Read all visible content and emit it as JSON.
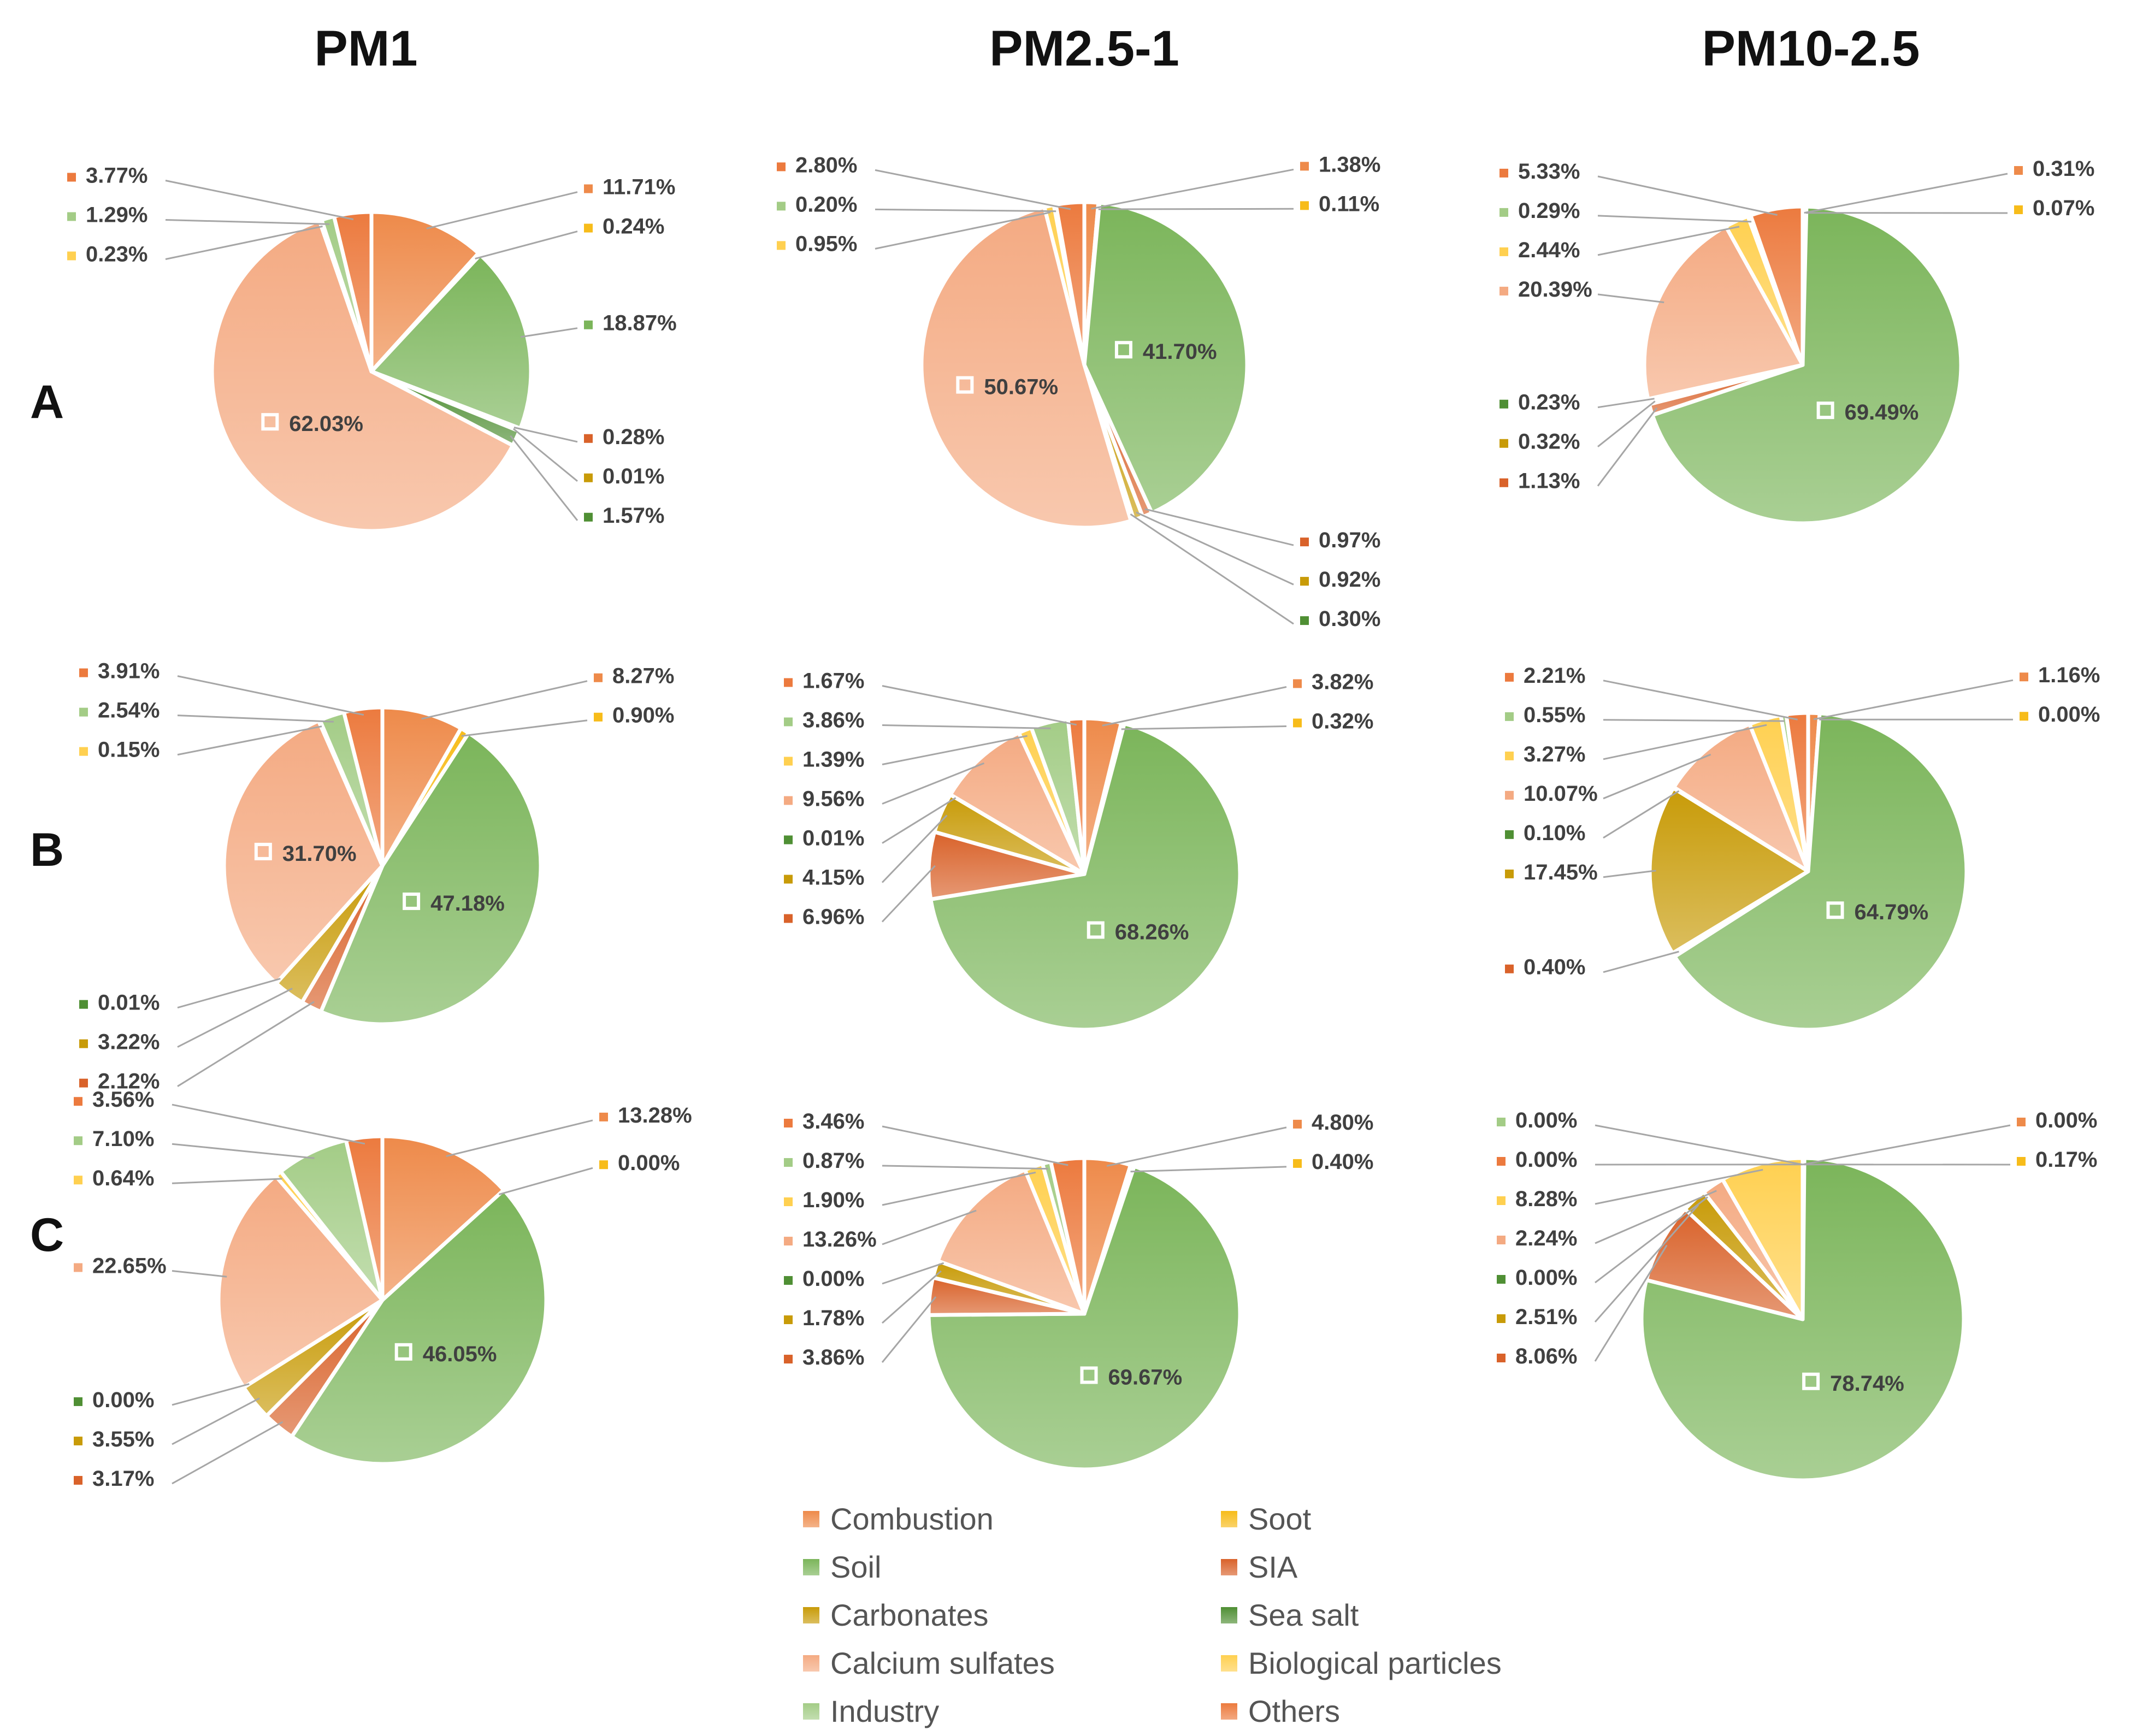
{
  "colors": {
    "Combustion": "#EE8A4A",
    "Soot": "#F7BC1A",
    "Soil": "#7BB55A",
    "SIA": "#D9622A",
    "Carbonates": "#C89B08",
    "Sea salt": "#4F8F34",
    "Calcium sulfates": "#F4AA82",
    "Biological particles": "#FFD050",
    "Industry": "#A3CC86",
    "Others": "#EC7A3E"
  },
  "chart_data": {
    "type": "pie",
    "title": "",
    "columns": [
      "PM1",
      "PM2.5-1",
      "PM10-2.5"
    ],
    "rows": [
      "A",
      "B",
      "C"
    ],
    "legend": {
      "placement": "bottom-center",
      "entries": [
        "Combustion",
        "Soot",
        "Soil",
        "SIA",
        "Carbonates",
        "Sea salt",
        "Calcium sulfates",
        "Biological particles",
        "Industry",
        "Others"
      ]
    },
    "charts": [
      {
        "row": "A",
        "column": "PM1",
        "slices": [
          {
            "category": "Combustion",
            "value": 11.71,
            "label": "11.71%"
          },
          {
            "category": "Soot",
            "value": 0.24,
            "label": "0.24%"
          },
          {
            "category": "Soil",
            "value": 18.87,
            "label": "18.87%"
          },
          {
            "category": "SIA",
            "value": 0.28,
            "label": "0.28%"
          },
          {
            "category": "Carbonates",
            "value": 0.01,
            "label": "0.01%"
          },
          {
            "category": "Sea salt",
            "value": 1.57,
            "label": "1.57%"
          },
          {
            "category": "Calcium sulfates",
            "value": 62.03,
            "label": "62.03%"
          },
          {
            "category": "Biological particles",
            "value": 0.23,
            "label": "0.23%"
          },
          {
            "category": "Industry",
            "value": 1.29,
            "label": "1.29%"
          },
          {
            "category": "Others",
            "value": 3.77,
            "label": "3.77%"
          }
        ]
      },
      {
        "row": "A",
        "column": "PM2.5-1",
        "slices": [
          {
            "category": "Combustion",
            "value": 1.38,
            "label": "1.38%"
          },
          {
            "category": "Soot",
            "value": 0.11,
            "label": "0.11%"
          },
          {
            "category": "Soil",
            "value": 41.7,
            "label": "41.70%"
          },
          {
            "category": "SIA",
            "value": 0.97,
            "label": "0.97%"
          },
          {
            "category": "Carbonates",
            "value": 0.92,
            "label": "0.92%"
          },
          {
            "category": "Sea salt",
            "value": 0.3,
            "label": "0.30%"
          },
          {
            "category": "Calcium sulfates",
            "value": 50.67,
            "label": "50.67%"
          },
          {
            "category": "Biological particles",
            "value": 0.95,
            "label": "0.95%"
          },
          {
            "category": "Industry",
            "value": 0.2,
            "label": "0.20%"
          },
          {
            "category": "Others",
            "value": 2.8,
            "label": "2.80%"
          }
        ]
      },
      {
        "row": "A",
        "column": "PM10-2.5",
        "slices": [
          {
            "category": "Combustion",
            "value": 0.31,
            "label": "0.31%"
          },
          {
            "category": "Soot",
            "value": 0.07,
            "label": "0.07%"
          },
          {
            "category": "Soil",
            "value": 69.49,
            "label": "69.49%"
          },
          {
            "category": "SIA",
            "value": 1.13,
            "label": "1.13%"
          },
          {
            "category": "Carbonates",
            "value": 0.32,
            "label": "0.32%"
          },
          {
            "category": "Sea salt",
            "value": 0.23,
            "label": "0.23%"
          },
          {
            "category": "Calcium sulfates",
            "value": 20.39,
            "label": "20.39%"
          },
          {
            "category": "Biological particles",
            "value": 2.44,
            "label": "2.44%"
          },
          {
            "category": "Industry",
            "value": 0.29,
            "label": "0.29%"
          },
          {
            "category": "Others",
            "value": 5.33,
            "label": "5.33%"
          }
        ]
      },
      {
        "row": "B",
        "column": "PM1",
        "slices": [
          {
            "category": "Combustion",
            "value": 8.27,
            "label": "8.27%"
          },
          {
            "category": "Soot",
            "value": 0.9,
            "label": "0.90%"
          },
          {
            "category": "Soil",
            "value": 47.18,
            "label": "47.18%"
          },
          {
            "category": "SIA",
            "value": 2.12,
            "label": "2.12%"
          },
          {
            "category": "Carbonates",
            "value": 3.22,
            "label": "3.22%"
          },
          {
            "category": "Sea salt",
            "value": 0.01,
            "label": "0.01%"
          },
          {
            "category": "Calcium sulfates",
            "value": 31.7,
            "label": "31.70%"
          },
          {
            "category": "Biological particles",
            "value": 0.15,
            "label": "0.15%"
          },
          {
            "category": "Industry",
            "value": 2.54,
            "label": "2.54%"
          },
          {
            "category": "Others",
            "value": 3.91,
            "label": "3.91%"
          }
        ]
      },
      {
        "row": "B",
        "column": "PM2.5-1",
        "slices": [
          {
            "category": "Combustion",
            "value": 3.82,
            "label": "3.82%"
          },
          {
            "category": "Soot",
            "value": 0.32,
            "label": "0.32%"
          },
          {
            "category": "Soil",
            "value": 68.26,
            "label": "68.26%"
          },
          {
            "category": "SIA",
            "value": 6.96,
            "label": "6.96%"
          },
          {
            "category": "Carbonates",
            "value": 4.15,
            "label": "4.15%"
          },
          {
            "category": "Sea salt",
            "value": 0.01,
            "label": "0.01%"
          },
          {
            "category": "Calcium sulfates",
            "value": 9.56,
            "label": "9.56%"
          },
          {
            "category": "Biological particles",
            "value": 1.39,
            "label": "1.39%"
          },
          {
            "category": "Industry",
            "value": 3.86,
            "label": "3.86%"
          },
          {
            "category": "Others",
            "value": 1.67,
            "label": "1.67%"
          }
        ]
      },
      {
        "row": "B",
        "column": "PM10-2.5",
        "slices": [
          {
            "category": "Combustion",
            "value": 1.16,
            "label": "1.16%"
          },
          {
            "category": "Soot",
            "value": 0.0,
            "label": "0.00%"
          },
          {
            "category": "Soil",
            "value": 64.79,
            "label": "64.79%"
          },
          {
            "category": "SIA",
            "value": 0.4,
            "label": "0.40%"
          },
          {
            "category": "Carbonates",
            "value": 17.45,
            "label": "17.45%"
          },
          {
            "category": "Sea salt",
            "value": 0.1,
            "label": "0.10%"
          },
          {
            "category": "Calcium sulfates",
            "value": 10.07,
            "label": "10.07%"
          },
          {
            "category": "Biological particles",
            "value": 3.27,
            "label": "3.27%"
          },
          {
            "category": "Industry",
            "value": 0.55,
            "label": "0.55%"
          },
          {
            "category": "Others",
            "value": 2.21,
            "label": "2.21%"
          }
        ]
      },
      {
        "row": "C",
        "column": "PM1",
        "slices": [
          {
            "category": "Combustion",
            "value": 13.28,
            "label": "13.28%"
          },
          {
            "category": "Soot",
            "value": 0.0,
            "label": "0.00%"
          },
          {
            "category": "Soil",
            "value": 46.05,
            "label": "46.05%"
          },
          {
            "category": "SIA",
            "value": 3.17,
            "label": "3.17%"
          },
          {
            "category": "Carbonates",
            "value": 3.55,
            "label": "3.55%"
          },
          {
            "category": "Sea salt",
            "value": 0.0,
            "label": "0.00%"
          },
          {
            "category": "Calcium sulfates",
            "value": 22.65,
            "label": "22.65%"
          },
          {
            "category": "Biological particles",
            "value": 0.64,
            "label": "0.64%"
          },
          {
            "category": "Industry",
            "value": 7.1,
            "label": "7.10%"
          },
          {
            "category": "Others",
            "value": 3.56,
            "label": "3.56%"
          }
        ]
      },
      {
        "row": "C",
        "column": "PM2.5-1",
        "slices": [
          {
            "category": "Combustion",
            "value": 4.8,
            "label": "4.80%"
          },
          {
            "category": "Soot",
            "value": 0.4,
            "label": "0.40%"
          },
          {
            "category": "Soil",
            "value": 69.67,
            "label": "69.67%"
          },
          {
            "category": "SIA",
            "value": 3.86,
            "label": "3.86%"
          },
          {
            "category": "Carbonates",
            "value": 1.78,
            "label": "1.78%"
          },
          {
            "category": "Sea salt",
            "value": 0.0,
            "label": "0.00%"
          },
          {
            "category": "Calcium sulfates",
            "value": 13.26,
            "label": "13.26%"
          },
          {
            "category": "Biological particles",
            "value": 1.9,
            "label": "1.90%"
          },
          {
            "category": "Industry",
            "value": 0.87,
            "label": "0.87%"
          },
          {
            "category": "Others",
            "value": 3.46,
            "label": "3.46%"
          }
        ]
      },
      {
        "row": "C",
        "column": "PM10-2.5",
        "slices": [
          {
            "category": "Combustion",
            "value": 0.0,
            "label": "0.00%"
          },
          {
            "category": "Soot",
            "value": 0.17,
            "label": "0.17%"
          },
          {
            "category": "Soil",
            "value": 78.74,
            "label": "78.74%"
          },
          {
            "category": "SIA",
            "value": 8.06,
            "label": "8.06%"
          },
          {
            "category": "Carbonates",
            "value": 2.51,
            "label": "2.51%"
          },
          {
            "category": "Sea salt",
            "value": 0.0,
            "label": "0.00%"
          },
          {
            "category": "Calcium sulfates",
            "value": 2.24,
            "label": "2.24%"
          },
          {
            "category": "Biological particles",
            "value": 8.28,
            "label": "8.28%"
          },
          {
            "category": "Industry",
            "value": 0.0,
            "label": "0.00%"
          },
          {
            "category": "Others",
            "value": 0.0,
            "label": "0.00%"
          }
        ]
      }
    ]
  }
}
